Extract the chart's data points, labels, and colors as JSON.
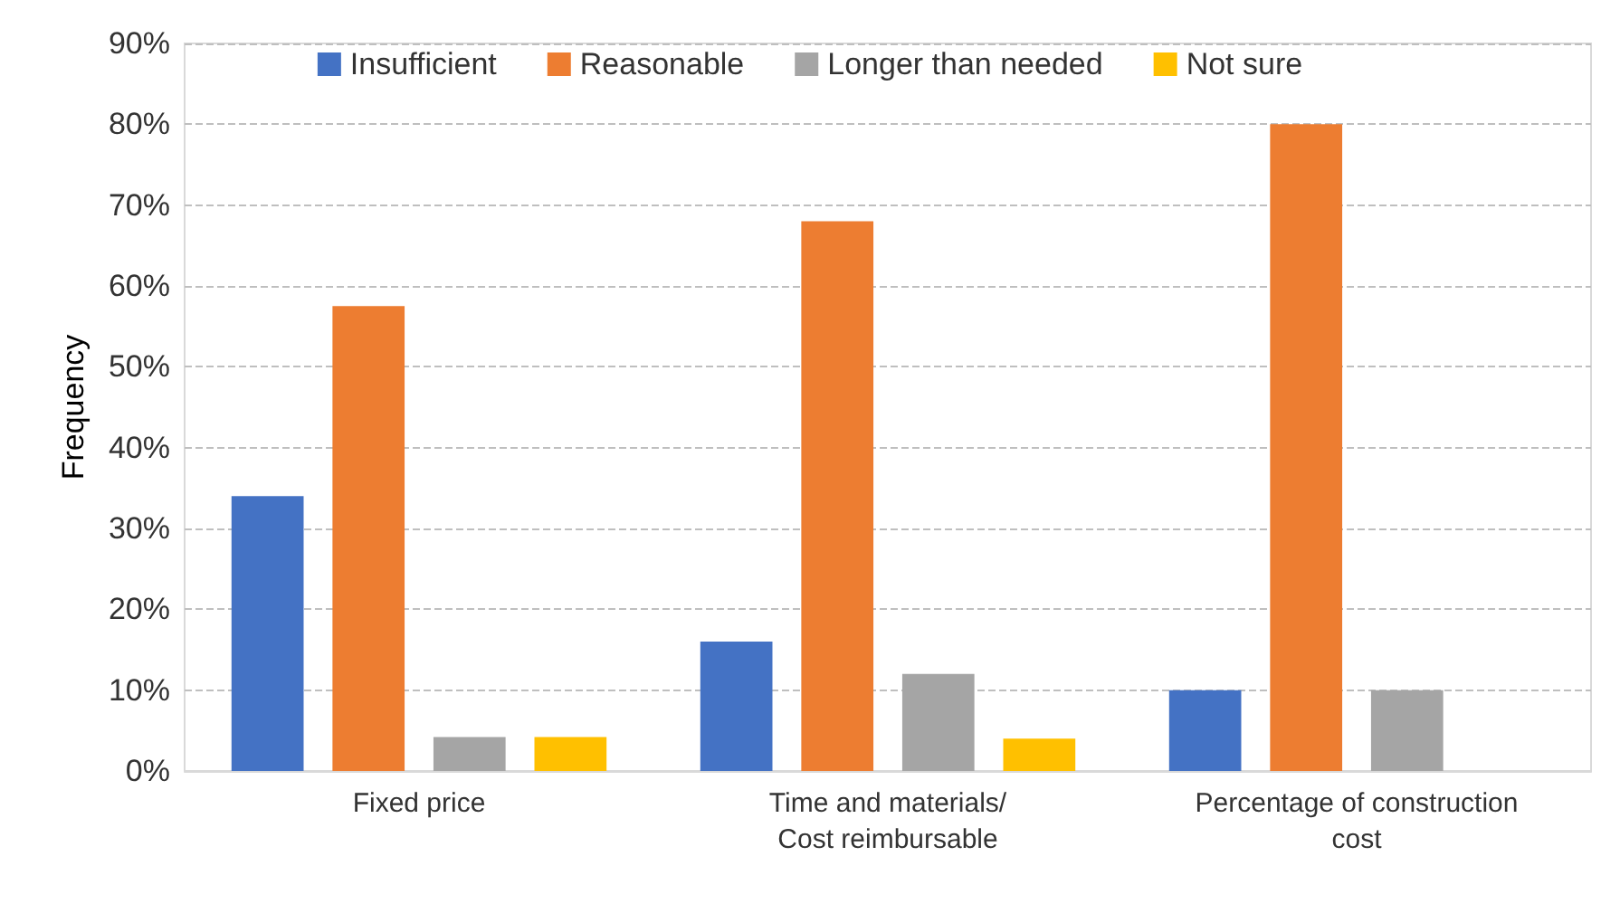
{
  "chart_data": {
    "type": "bar",
    "ylabel": "Frequency",
    "categories": [
      "Fixed price",
      "Time and materials/\nCost reimbursable",
      "Percentage of construction\ncost"
    ],
    "series": [
      {
        "name": "Insufficient",
        "color": "#4472c4",
        "values": [
          34,
          16,
          10
        ]
      },
      {
        "name": "Reasonable",
        "color": "#ed7d31",
        "values": [
          57.5,
          68,
          80
        ]
      },
      {
        "name": "Longer than needed",
        "color": "#a5a5a5",
        "values": [
          4.2,
          12,
          10
        ]
      },
      {
        "name": "Not sure",
        "color": "#ffc000",
        "values": [
          4.2,
          4,
          0
        ]
      }
    ],
    "ylim": [
      0,
      90
    ],
    "yticks": [
      {
        "value": 0,
        "label": "0%"
      },
      {
        "value": 10,
        "label": "10%"
      },
      {
        "value": 20,
        "label": "20%"
      },
      {
        "value": 30,
        "label": "30%"
      },
      {
        "value": 40,
        "label": "40%"
      },
      {
        "value": 50,
        "label": "50%"
      },
      {
        "value": 60,
        "label": "60%"
      },
      {
        "value": 70,
        "label": "70%"
      },
      {
        "value": 80,
        "label": "80%"
      },
      {
        "value": 90,
        "label": "90%"
      }
    ],
    "grid": "y",
    "legend": "top"
  }
}
